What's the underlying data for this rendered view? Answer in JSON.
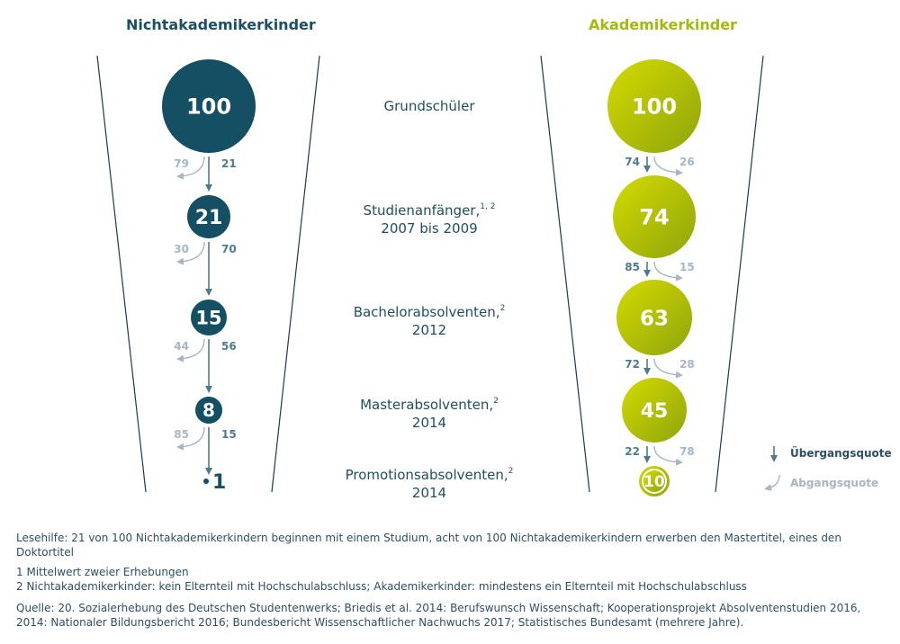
{
  "headers": {
    "left": "Nichtakademikerkinder",
    "right": "Akademikerkinder"
  },
  "colors": {
    "left": "#154f63",
    "right_start": "#cfd600",
    "right_end": "#93a80b",
    "transition": "#4d7a93",
    "dropout": "#a7b6c4",
    "funnel_line": "#1b3b4a"
  },
  "stages": [
    {
      "label": "Grundschüler",
      "sup": "",
      "year": ""
    },
    {
      "label": "Studienanfänger,",
      "sup": "1, 2",
      "year": "2007 bis 2009"
    },
    {
      "label": "Bachelorabsolventen,",
      "sup": "2",
      "year": "2012"
    },
    {
      "label": "Masterabsolventen,",
      "sup": "2",
      "year": "2014"
    },
    {
      "label": "Promotionsabsolventen,",
      "sup": "2",
      "year": "2014"
    }
  ],
  "left_values": [
    100,
    21,
    15,
    8,
    1
  ],
  "right_values": [
    100,
    74,
    63,
    45,
    10
  ],
  "left_transitions": [
    {
      "uebergang": 21,
      "abgang": 79
    },
    {
      "uebergang": 70,
      "abgang": 30
    },
    {
      "uebergang": 56,
      "abgang": 44
    },
    {
      "uebergang": 15,
      "abgang": 85
    }
  ],
  "right_transitions": [
    {
      "uebergang": 74,
      "abgang": 26
    },
    {
      "uebergang": 85,
      "abgang": 15
    },
    {
      "uebergang": 72,
      "abgang": 28
    },
    {
      "uebergang": 22,
      "abgang": 78
    }
  ],
  "legend": {
    "uebergang": "Übergangsquote",
    "abgang": "Abgangsquote"
  },
  "footer": {
    "lesehilfe": "Lesehilfe: 21 von 100 Nichtakademikerkindern beginnen mit einem Studium, acht von 100 Nichtakademikerkindern erwerben den Mastertitel, eines den Doktortitel",
    "note1": "1   Mittelwert zweier Erhebungen",
    "note2": "2   Nichtakademikerkinder: kein Elternteil mit Hochschulabschluss; Akademikerkinder: mindestens ein Elternteil mit Hochschulabschluss",
    "source": "Quelle: 20. Sozialerhebung des Deutschen Studentenwerks; Briedis et al. 2014: Berufswunsch Wissenschaft; Kooperationsprojekt Absolventenstudien 2016, 2014: Nationaler Bildungsbericht 2016; Bundesbericht Wissenschaftlicher Nachwuchs 2017; Statistisches Bundesamt (mehrere Jahre)."
  }
}
